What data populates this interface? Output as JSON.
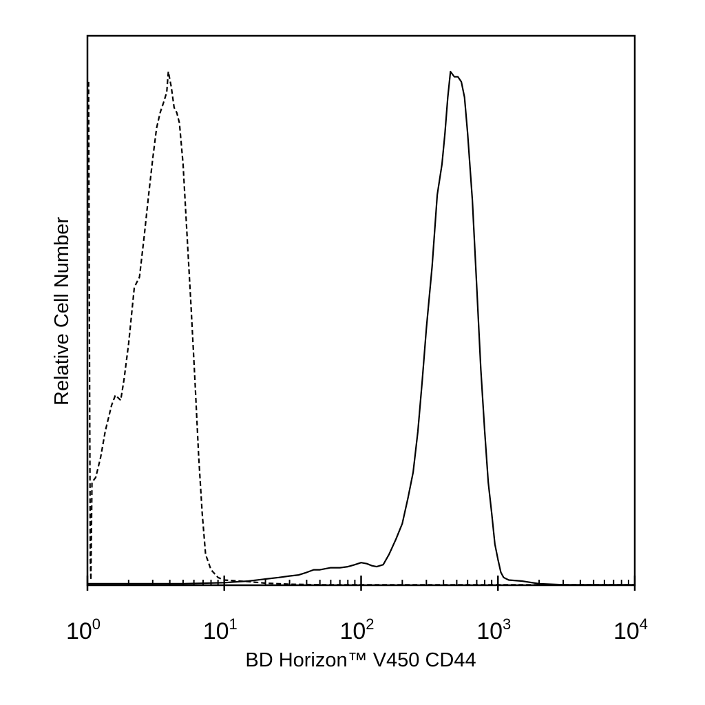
{
  "chart_data": {
    "type": "line",
    "xlabel": "BD Horizon™ V450 CD44",
    "ylabel": "Relative Cell Number",
    "x_scale": "log",
    "xlim": [
      1,
      10000
    ],
    "ylim": [
      0,
      100
    ],
    "x_tick_labels": [
      {
        "base": "10",
        "exp": "0"
      },
      {
        "base": "10",
        "exp": "1"
      },
      {
        "base": "10",
        "exp": "2"
      },
      {
        "base": "10",
        "exp": "3"
      },
      {
        "base": "10",
        "exp": "4"
      }
    ],
    "x_tick_values": [
      1,
      10,
      100,
      1000,
      10000
    ],
    "grid": false,
    "legend": "none",
    "series": [
      {
        "line_style": "dashed",
        "color": "#000000",
        "points": [
          [
            1.02,
            98
          ],
          [
            1.03,
            60
          ],
          [
            1.04,
            30
          ],
          [
            1.05,
            5
          ],
          [
            1.06,
            1
          ],
          [
            1.08,
            20
          ],
          [
            1.15,
            21
          ],
          [
            1.25,
            25
          ],
          [
            1.35,
            30
          ],
          [
            1.5,
            35
          ],
          [
            1.6,
            37
          ],
          [
            1.75,
            36
          ],
          [
            1.85,
            40
          ],
          [
            2.0,
            47
          ],
          [
            2.2,
            58
          ],
          [
            2.4,
            60
          ],
          [
            2.6,
            68
          ],
          [
            2.8,
            76
          ],
          [
            3.0,
            83
          ],
          [
            3.2,
            89
          ],
          [
            3.4,
            92
          ],
          [
            3.6,
            94
          ],
          [
            3.8,
            96
          ],
          [
            3.9,
            100
          ],
          [
            4.1,
            97
          ],
          [
            4.3,
            93
          ],
          [
            4.5,
            92
          ],
          [
            4.7,
            90
          ],
          [
            5.0,
            82
          ],
          [
            5.3,
            70
          ],
          [
            5.7,
            55
          ],
          [
            6.1,
            40
          ],
          [
            6.5,
            25
          ],
          [
            6.9,
            14
          ],
          [
            7.3,
            6
          ],
          [
            8.0,
            3
          ],
          [
            9.0,
            1.5
          ],
          [
            10,
            1
          ],
          [
            15,
            0.7
          ],
          [
            20,
            0.4
          ],
          [
            30,
            0.2
          ],
          [
            50,
            0.1
          ],
          [
            100,
            0.1
          ],
          [
            1000,
            0.1
          ],
          [
            10000,
            0.1
          ]
        ]
      },
      {
        "line_style": "solid",
        "color": "#000000",
        "points": [
          [
            1.0,
            0.3
          ],
          [
            5,
            0.3
          ],
          [
            10,
            0.5
          ],
          [
            15,
            0.8
          ],
          [
            20,
            1.2
          ],
          [
            25,
            1.5
          ],
          [
            30,
            1.8
          ],
          [
            35,
            2.0
          ],
          [
            40,
            2.5
          ],
          [
            45,
            3.0
          ],
          [
            50,
            3.0
          ],
          [
            60,
            3.4
          ],
          [
            70,
            3.4
          ],
          [
            80,
            3.6
          ],
          [
            90,
            4.0
          ],
          [
            100,
            4.4
          ],
          [
            110,
            4.2
          ],
          [
            120,
            3.8
          ],
          [
            130,
            3.6
          ],
          [
            145,
            4.0
          ],
          [
            160,
            6
          ],
          [
            180,
            9
          ],
          [
            200,
            12
          ],
          [
            220,
            17
          ],
          [
            240,
            22
          ],
          [
            260,
            30
          ],
          [
            280,
            40
          ],
          [
            300,
            50
          ],
          [
            330,
            62
          ],
          [
            360,
            76
          ],
          [
            390,
            82
          ],
          [
            410,
            88
          ],
          [
            430,
            95
          ],
          [
            450,
            100
          ],
          [
            480,
            99
          ],
          [
            510,
            99
          ],
          [
            540,
            98
          ],
          [
            570,
            95
          ],
          [
            600,
            88
          ],
          [
            650,
            75
          ],
          [
            700,
            58
          ],
          [
            750,
            42
          ],
          [
            800,
            30
          ],
          [
            850,
            20
          ],
          [
            900,
            14
          ],
          [
            950,
            8
          ],
          [
            1000,
            5
          ],
          [
            1050,
            2.5
          ],
          [
            1100,
            1.5
          ],
          [
            1200,
            1.0
          ],
          [
            1500,
            0.8
          ],
          [
            2000,
            0.3
          ],
          [
            3000,
            0.1
          ],
          [
            10000,
            0.1
          ]
        ]
      }
    ]
  }
}
